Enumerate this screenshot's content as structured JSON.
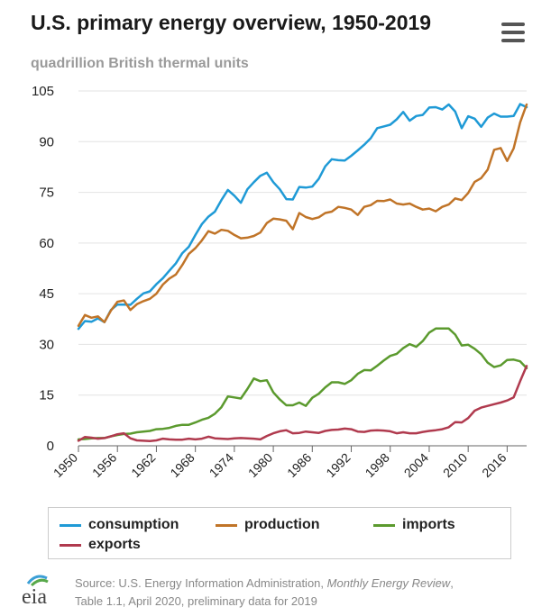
{
  "header": {
    "title": "U.S. primary energy overview, 1950-2019",
    "subtitle": "quadrillion British thermal units",
    "menu_icon": "hamburger-menu-icon"
  },
  "chart_data": {
    "type": "line",
    "title": "U.S. primary energy overview, 1950-2019",
    "ylabel": "quadrillion British thermal units",
    "xlabel": "",
    "xlim": [
      1950,
      2019
    ],
    "ylim": [
      0,
      105
    ],
    "yticks": [
      0,
      15,
      30,
      45,
      60,
      75,
      90,
      105
    ],
    "xticks": [
      1950,
      1956,
      1962,
      1968,
      1974,
      1980,
      1986,
      1992,
      1998,
      2004,
      2010,
      2016
    ],
    "grid": true,
    "legend_placement": "bottom",
    "x": [
      1950,
      1951,
      1952,
      1953,
      1954,
      1955,
      1956,
      1957,
      1958,
      1959,
      1960,
      1961,
      1962,
      1963,
      1964,
      1965,
      1966,
      1967,
      1968,
      1969,
      1970,
      1971,
      1972,
      1973,
      1974,
      1975,
      1976,
      1977,
      1978,
      1979,
      1980,
      1981,
      1982,
      1983,
      1984,
      1985,
      1986,
      1987,
      1988,
      1989,
      1990,
      1991,
      1992,
      1993,
      1994,
      1995,
      1996,
      1997,
      1998,
      1999,
      2000,
      2001,
      2002,
      2003,
      2004,
      2005,
      2006,
      2007,
      2008,
      2009,
      2010,
      2011,
      2012,
      2013,
      2014,
      2015,
      2016,
      2017,
      2018,
      2019
    ],
    "series": [
      {
        "name": "consumption",
        "color": "#1f9ad6",
        "values": [
          34.6,
          36.9,
          36.7,
          37.7,
          36.6,
          40.2,
          41.8,
          41.8,
          41.7,
          43.5,
          45.1,
          45.7,
          47.8,
          49.6,
          51.8,
          54.0,
          57.0,
          58.9,
          62.4,
          65.6,
          67.8,
          69.3,
          72.7,
          75.7,
          74.0,
          71.9,
          75.9,
          78.0,
          79.9,
          80.8,
          78.0,
          75.9,
          73.0,
          72.9,
          76.6,
          76.4,
          76.7,
          79.0,
          82.7,
          84.8,
          84.5,
          84.4,
          85.8,
          87.4,
          89.1,
          91.0,
          94.0,
          94.5,
          95.0,
          96.6,
          98.8,
          96.2,
          97.6,
          97.9,
          100.1,
          100.2,
          99.5,
          101.0,
          98.9,
          94.0,
          97.5,
          96.8,
          94.4,
          97.1,
          98.3,
          97.4,
          97.4,
          97.6,
          101.1,
          100.2
        ]
      },
      {
        "name": "production",
        "color": "#c07428",
        "values": [
          35.5,
          38.7,
          37.9,
          38.3,
          36.6,
          40.0,
          42.6,
          43.0,
          40.2,
          41.9,
          42.8,
          43.5,
          45.0,
          47.7,
          49.5,
          50.7,
          53.5,
          56.8,
          58.5,
          60.8,
          63.5,
          62.8,
          63.9,
          63.6,
          62.4,
          61.4,
          61.6,
          62.1,
          63.1,
          65.9,
          67.2,
          67.0,
          66.6,
          64.1,
          68.9,
          67.7,
          67.1,
          67.6,
          68.9,
          69.3,
          70.7,
          70.4,
          69.9,
          68.3,
          70.7,
          71.2,
          72.5,
          72.4,
          72.9,
          71.7,
          71.4,
          71.7,
          70.7,
          69.9,
          70.2,
          69.4,
          70.7,
          71.4,
          73.2,
          72.7,
          74.8,
          78.1,
          79.2,
          81.7,
          87.6,
          88.1,
          84.3,
          88.0,
          95.7,
          101.0
        ]
      },
      {
        "name": "imports",
        "color": "#5b9a2e",
        "values": [
          1.9,
          2.0,
          2.2,
          2.3,
          2.3,
          2.8,
          3.2,
          3.5,
          3.6,
          4.0,
          4.2,
          4.4,
          4.9,
          5.0,
          5.3,
          5.9,
          6.2,
          6.2,
          6.9,
          7.7,
          8.3,
          9.5,
          11.4,
          14.6,
          14.3,
          14.0,
          16.8,
          19.9,
          19.1,
          19.4,
          15.8,
          13.7,
          12.0,
          12.0,
          12.8,
          11.8,
          14.2,
          15.4,
          17.3,
          18.8,
          18.8,
          18.3,
          19.4,
          21.3,
          22.4,
          22.3,
          23.7,
          25.2,
          26.6,
          27.2,
          28.9,
          30.1,
          29.3,
          31.0,
          33.5,
          34.7,
          34.7,
          34.7,
          32.9,
          29.7,
          29.9,
          28.7,
          27.1,
          24.6,
          23.3,
          23.8,
          25.4,
          25.5,
          25.0,
          23.0
        ]
      },
      {
        "name": "exports",
        "color": "#b03a4e",
        "values": [
          1.5,
          2.6,
          2.4,
          2.1,
          2.3,
          2.8,
          3.4,
          3.7,
          2.2,
          1.6,
          1.5,
          1.4,
          1.6,
          2.1,
          1.9,
          1.8,
          1.8,
          2.1,
          1.9,
          2.1,
          2.7,
          2.2,
          2.1,
          2.0,
          2.2,
          2.3,
          2.2,
          2.1,
          1.9,
          2.9,
          3.7,
          4.3,
          4.6,
          3.7,
          3.8,
          4.2,
          4.0,
          3.8,
          4.4,
          4.7,
          4.8,
          5.1,
          4.9,
          4.2,
          4.1,
          4.5,
          4.6,
          4.5,
          4.3,
          3.7,
          4.0,
          3.7,
          3.7,
          4.1,
          4.4,
          4.6,
          4.9,
          5.5,
          7.0,
          6.9,
          8.2,
          10.4,
          11.3,
          11.8,
          12.3,
          12.8,
          13.4,
          14.3,
          19.1,
          23.6
        ]
      }
    ]
  },
  "source": {
    "logo_text": "eia",
    "prefix": "Source: U.S. Energy Information Administration, ",
    "publication": "Monthly Energy Review",
    "suffix": ",",
    "line2": "Table 1.1, April 2020, preliminary data for 2019"
  }
}
